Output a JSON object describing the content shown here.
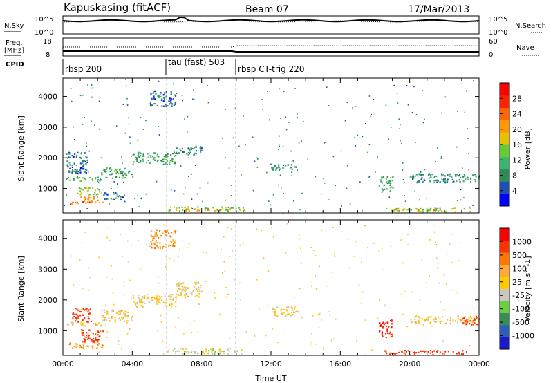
{
  "header": {
    "station": "Kapuskasing (fitACF)",
    "beam": "Beam 07",
    "date": "17/Mar/2013"
  },
  "nsky_panel": {
    "left_label": "N.Sky",
    "left_ticks": [
      "10^5",
      "10^0"
    ],
    "right_label": "N.Search",
    "right_ticks": [
      "10^5",
      "10^0"
    ]
  },
  "freq_panel": {
    "left_label_1": "Freq.",
    "left_label_2": "[MHz]",
    "left_ticks": [
      "18",
      "8"
    ],
    "right_label": "Nave",
    "right_ticks": [
      "60",
      "0"
    ]
  },
  "cpid": {
    "label": "CPID",
    "segments": [
      {
        "name": "rbsp 200",
        "start_h": 0
      },
      {
        "name": "tau (fast) 503",
        "start_h": 6
      },
      {
        "name": "rbsp CT-trig 220",
        "start_h": 10
      }
    ]
  },
  "colors": {
    "power": [
      "#0000ff",
      "#1f4fb4",
      "#2e8b57",
      "#3cb371",
      "#66cc33",
      "#e8c000",
      "#ff9900",
      "#ff6600",
      "#ff2200",
      "#ff0000"
    ],
    "velocity": [
      "#1a1acc",
      "#2e5eb8",
      "#3a8a5a",
      "#6ad040",
      "#c8c8c0",
      "#ffcc00",
      "#ffaa33",
      "#ff7700",
      "#ff3300",
      "#ff0000"
    ]
  },
  "chart_data": [
    {
      "type": "heatmap",
      "name": "power",
      "ylabel": "Slant Range [km]",
      "yticks": [
        1000,
        2000,
        3000,
        4000
      ],
      "ylim": [
        200,
        4600
      ],
      "xlim": [
        0,
        24
      ],
      "colorbar_label": "Power [dB]",
      "colorbar_ticks": [
        "28",
        "24",
        "20",
        "16",
        "12",
        "8",
        "4"
      ],
      "bands": [
        {
          "t0": 0.3,
          "t1": 2.3,
          "r0": 500,
          "r1": 620,
          "v": 22
        },
        {
          "t0": 1.0,
          "t1": 2.0,
          "r0": 620,
          "r1": 800,
          "v": 20
        },
        {
          "t0": 0.8,
          "t1": 2.2,
          "r0": 800,
          "r1": 1050,
          "v": 14
        },
        {
          "t0": 0.1,
          "t1": 2.2,
          "r0": 1250,
          "r1": 1400,
          "v": 12
        },
        {
          "t0": 2.2,
          "t1": 4.0,
          "r0": 1350,
          "r1": 1700,
          "v": 10
        },
        {
          "t0": 4.0,
          "t1": 6.5,
          "r0": 1800,
          "r1": 2200,
          "v": 10
        },
        {
          "t0": 6.5,
          "t1": 8.0,
          "r0": 2100,
          "r1": 2400,
          "v": 8
        },
        {
          "t0": 0.2,
          "t1": 1.4,
          "r0": 1500,
          "r1": 2200,
          "v": 6
        },
        {
          "t0": 2.3,
          "t1": 3.5,
          "r0": 650,
          "r1": 900,
          "v": 6
        },
        {
          "t0": 6.0,
          "t1": 10.5,
          "r0": 270,
          "r1": 420,
          "v": 14
        },
        {
          "t0": 7.0,
          "t1": 9.0,
          "r0": 280,
          "r1": 360,
          "v": 20
        },
        {
          "t0": 18.5,
          "t1": 23.5,
          "r0": 260,
          "r1": 380,
          "v": 14
        },
        {
          "t0": 19.0,
          "t1": 22.0,
          "r0": 280,
          "r1": 340,
          "v": 20
        },
        {
          "t0": 20.0,
          "t1": 24.0,
          "r0": 1200,
          "r1": 1500,
          "v": 8
        },
        {
          "t0": 12.0,
          "t1": 13.5,
          "r0": 1600,
          "r1": 1800,
          "v": 8
        },
        {
          "t0": 18.2,
          "t1": 19.0,
          "r0": 900,
          "r1": 1400,
          "v": 10
        },
        {
          "t0": 5.0,
          "t1": 6.5,
          "r0": 3700,
          "r1": 4200,
          "v": 6
        }
      ]
    },
    {
      "type": "heatmap",
      "name": "velocity",
      "ylabel": "Slant Range [km]",
      "yticks": [
        1000,
        2000,
        3000,
        4000
      ],
      "ylim": [
        200,
        4600
      ],
      "xlim": [
        0,
        24
      ],
      "xlabel": "Time UT",
      "xticks": [
        "00:00",
        "04:00",
        "08:00",
        "12:00",
        "16:00",
        "20:00",
        "00:00"
      ],
      "colorbar_label": "Velocity [m s^-1]",
      "colorbar_ticks": [
        "1000",
        "500",
        "100",
        "25",
        "-25",
        "-100",
        "-500",
        "-1000"
      ],
      "bands": [
        {
          "t0": 0.3,
          "t1": 2.3,
          "r0": 450,
          "r1": 620,
          "v": -80
        },
        {
          "t0": 1.0,
          "t1": 2.3,
          "r0": 620,
          "r1": 1050,
          "v": -300
        },
        {
          "t0": 0.5,
          "t1": 1.6,
          "r0": 1300,
          "r1": 1750,
          "v": -400
        },
        {
          "t0": 0.1,
          "t1": 2.2,
          "r0": 1180,
          "r1": 1300,
          "v": 0
        },
        {
          "t0": 2.2,
          "t1": 4.0,
          "r0": 1300,
          "r1": 1700,
          "v": 0
        },
        {
          "t0": 4.0,
          "t1": 6.5,
          "r0": 1800,
          "r1": 2200,
          "v": 0
        },
        {
          "t0": 6.5,
          "t1": 8.0,
          "r0": 2100,
          "r1": 2600,
          "v": 0
        },
        {
          "t0": 6.0,
          "t1": 10.5,
          "r0": 270,
          "r1": 450,
          "v": 60
        },
        {
          "t0": 18.5,
          "t1": 23.5,
          "r0": 250,
          "r1": 380,
          "v": -300
        },
        {
          "t0": 20.0,
          "t1": 24.0,
          "r0": 1250,
          "r1": 1500,
          "v": 0
        },
        {
          "t0": 18.2,
          "t1": 19.0,
          "r0": 800,
          "r1": 1400,
          "v": -500
        },
        {
          "t0": 23.0,
          "t1": 24.0,
          "r0": 1200,
          "r1": 1500,
          "v": -400
        },
        {
          "t0": 12.0,
          "t1": 13.5,
          "r0": 1500,
          "r1": 1800,
          "v": 0
        },
        {
          "t0": 5.0,
          "t1": 6.5,
          "r0": 3700,
          "r1": 4300,
          "v": -100
        }
      ]
    }
  ]
}
